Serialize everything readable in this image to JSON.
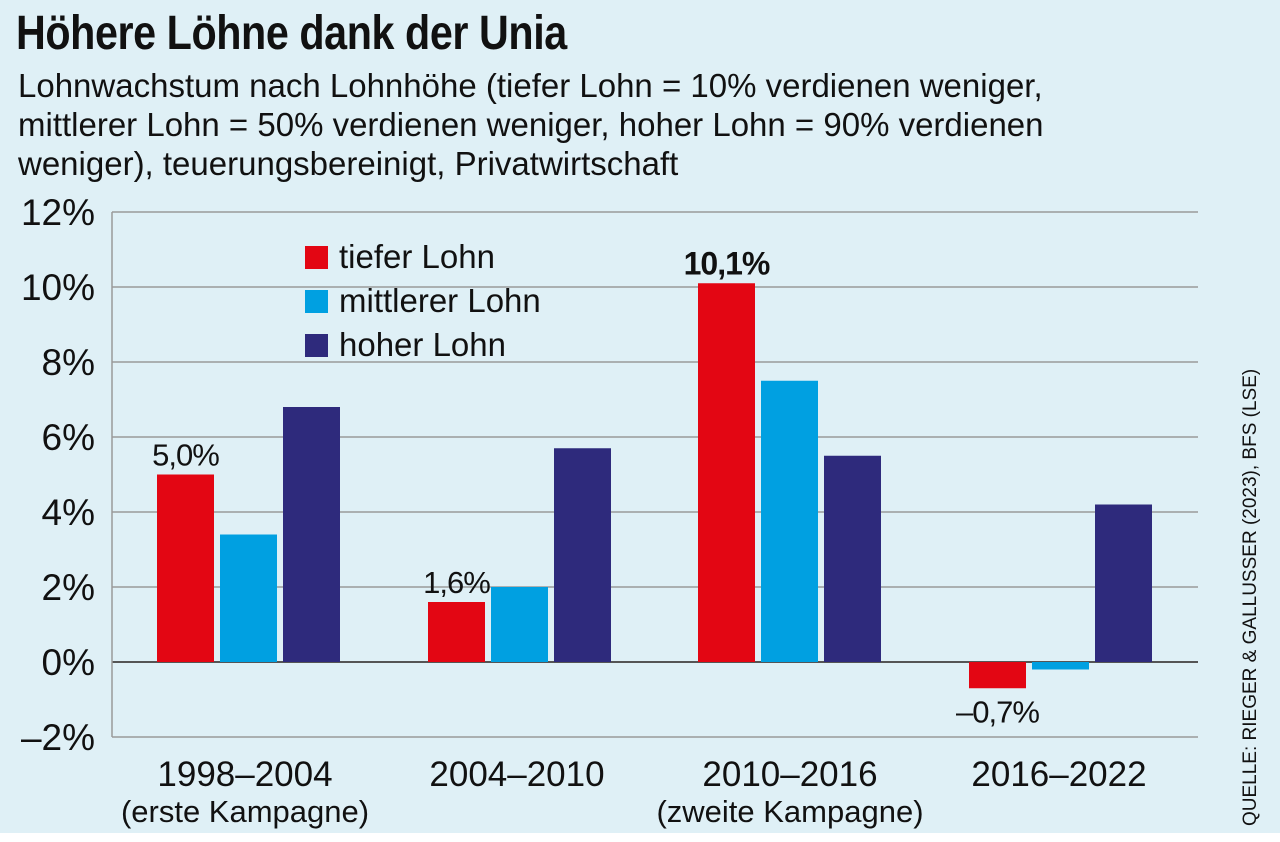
{
  "title": "Höhere Löhne dank der Unia",
  "subtitle_lines": [
    "Lohnwachstum nach Lohnhöhe (tiefer Lohn = 10% verdienen weniger,",
    "mittlerer Lohn = 50% verdienen weniger, hoher Lohn = 90% verdienen",
    "weniger), teuerungsbereinigt, Privatwirtschaft"
  ],
  "source": "QUELLE: RIEGER & GALLUSSER (2023), BFS (LSE)",
  "colors": {
    "background": "#dff0f6",
    "tiefer": "#e30613",
    "mittlerer": "#00a0e1",
    "hoher": "#2e2a7c",
    "grid": "#9a9a9a"
  },
  "chart_data": {
    "type": "bar",
    "title": "Höhere Löhne dank der Unia",
    "ylabel": "",
    "xlabel": "",
    "ylim": [
      -2,
      12
    ],
    "yticks": [
      -2,
      0,
      2,
      4,
      6,
      8,
      10,
      12
    ],
    "ytick_labels": [
      "–2%",
      "0%",
      "2%",
      "4%",
      "6%",
      "8%",
      "10%",
      "12%"
    ],
    "grid": true,
    "legend_position": "top-left",
    "categories": [
      [
        "1998–2004",
        "(erste Kampagne)"
      ],
      [
        "2004–2010"
      ],
      [
        "2010–2016",
        "(zweite Kampagne)"
      ],
      [
        "2016–2022"
      ]
    ],
    "series": [
      {
        "name": "tiefer Lohn",
        "color": "#e30613",
        "values": [
          5.0,
          1.6,
          10.1,
          -0.7
        ]
      },
      {
        "name": "mittlerer Lohn",
        "color": "#00a0e1",
        "values": [
          3.4,
          2.0,
          7.5,
          -0.2
        ]
      },
      {
        "name": "hoher Lohn",
        "color": "#2e2a7c",
        "values": [
          6.8,
          5.7,
          5.5,
          4.2
        ]
      }
    ],
    "data_labels": [
      {
        "series": 0,
        "category": 0,
        "text": "5,0%",
        "bold": false
      },
      {
        "series": 0,
        "category": 1,
        "text": "1,6%",
        "bold": false
      },
      {
        "series": 0,
        "category": 2,
        "text": "10,1%",
        "bold": true
      },
      {
        "series": 0,
        "category": 3,
        "text": "–0,7%",
        "bold": false
      }
    ]
  }
}
